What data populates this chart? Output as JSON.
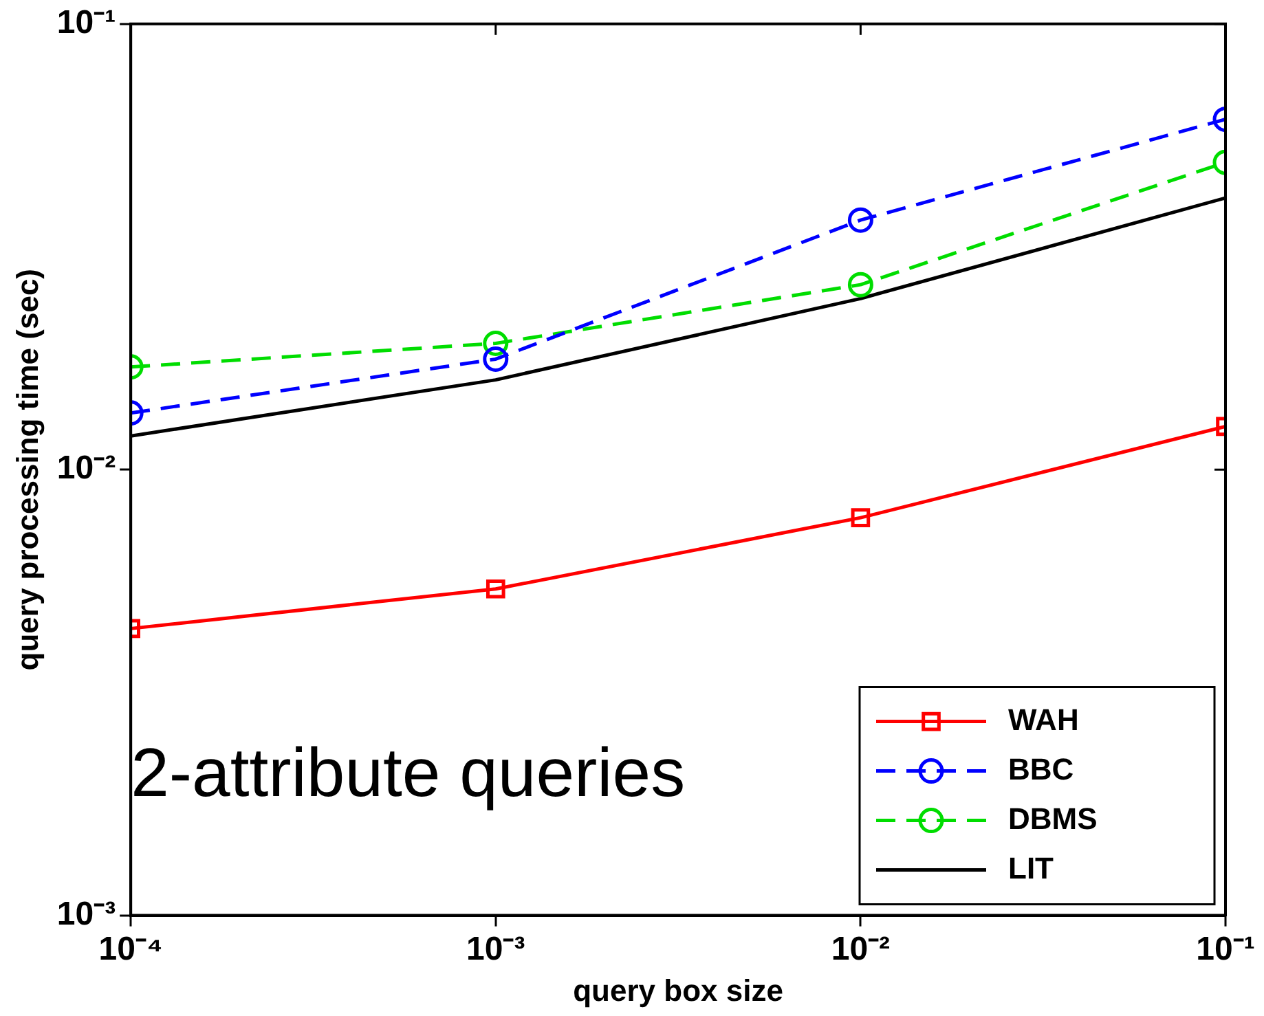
{
  "chart_data": {
    "type": "line",
    "xlabel": "query box size",
    "ylabel": "query processing time (sec)",
    "log": "xy",
    "grid": false,
    "legend": "bottom right",
    "xlim": [
      0.0001,
      0.1
    ],
    "xticks": [
      {
        "value": 0.0001,
        "label": "10⁻⁴"
      },
      {
        "value": 0.001,
        "label": "10⁻³"
      },
      {
        "value": 0.01,
        "label": "10⁻²"
      },
      {
        "value": 0.1,
        "label": "10⁻¹"
      }
    ],
    "ylim": [
      0.001,
      0.1
    ],
    "yticks": [
      {
        "value": 0.001,
        "label": "10⁻³"
      },
      {
        "value": 0.01,
        "label": "10⁻²"
      },
      {
        "value": 0.1,
        "label": "10⁻¹"
      }
    ],
    "x": [
      0.0001,
      0.001,
      0.01,
      0.1
    ],
    "annotations": [
      "2-attribute queries"
    ],
    "series": [
      {
        "name": "WAH",
        "color": "#ff0000",
        "marker": "square",
        "line_style": "solid",
        "values": [
          0.0044,
          0.0054,
          0.0078,
          0.0125
        ]
      },
      {
        "name": "BBC",
        "color": "#0000ff",
        "marker": "circle",
        "line_style": "dashed",
        "values": [
          0.0134,
          0.0177,
          0.0363,
          0.0611
        ]
      },
      {
        "name": "DBMS",
        "color": "#00dd00",
        "marker": "circle",
        "line_style": "dashed",
        "values": [
          0.017,
          0.0192,
          0.026,
          0.0489
        ]
      },
      {
        "name": "LIT",
        "color": "#000000",
        "marker": "none",
        "line_style": "solid",
        "values": [
          0.0119,
          0.0159,
          0.0242,
          0.0407
        ]
      }
    ]
  }
}
